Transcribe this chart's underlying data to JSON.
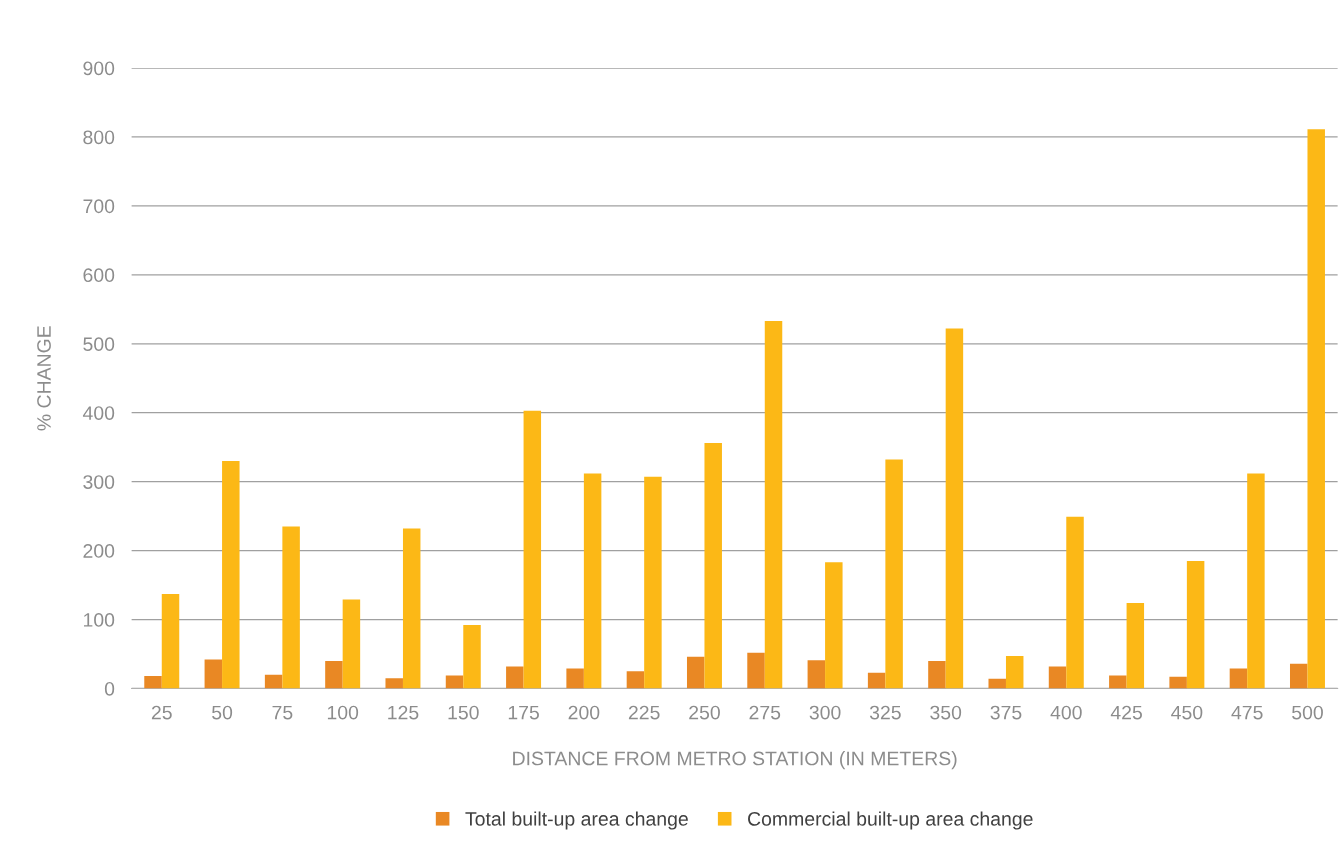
{
  "chart_data": {
    "type": "bar",
    "xlabel": "DISTANCE FROM METRO STATION (IN METERS)",
    "ylabel": "% CHANGE",
    "categories": [
      "25",
      "50",
      "75",
      "100",
      "125",
      "150",
      "175",
      "200",
      "225",
      "250",
      "275",
      "300",
      "325",
      "350",
      "375",
      "400",
      "425",
      "450",
      "475",
      "500"
    ],
    "series": [
      {
        "name": "Total built-up area change",
        "color": "#e98824",
        "values": [
          18,
          42,
          20,
          40,
          15,
          19,
          32,
          29,
          25,
          46,
          52,
          41,
          23,
          40,
          14,
          32,
          19,
          17,
          29,
          36
        ]
      },
      {
        "name": "Commercial built-up area change",
        "color": "#fcb816",
        "values": [
          137,
          330,
          235,
          129,
          232,
          92,
          403,
          312,
          307,
          356,
          533,
          183,
          332,
          522,
          47,
          249,
          124,
          185,
          312,
          811
        ]
      }
    ],
    "ylim": [
      0,
      900
    ],
    "yticks": [
      0,
      100,
      200,
      300,
      400,
      500,
      600,
      700,
      800,
      900
    ],
    "grid": "y",
    "legend": "bottom"
  }
}
